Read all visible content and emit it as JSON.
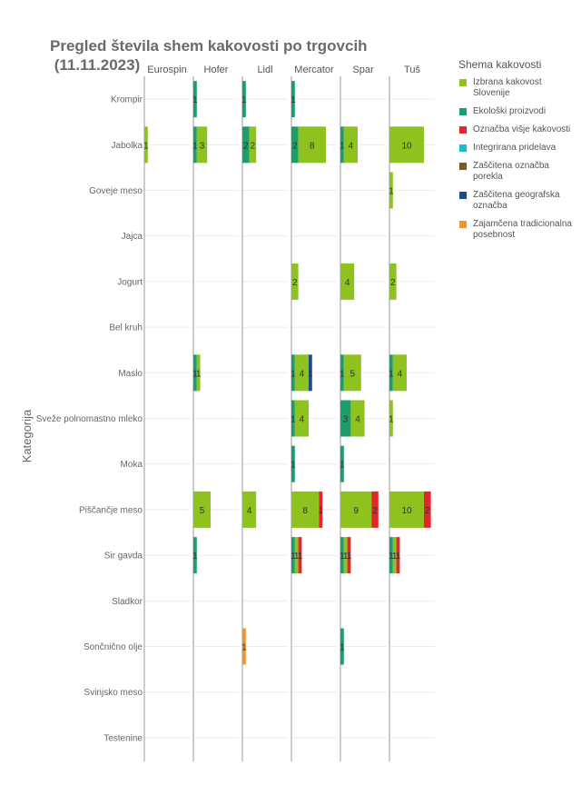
{
  "chart_data": {
    "type": "bar",
    "orientation": "horizontal",
    "stacked": true,
    "faceted_by": "Trgovec",
    "title": "Pregled števila shem kakovosti po trgovcih\n (11.11.2023)",
    "ylabel": "Kategorija",
    "legend_title": "Shema kakovosti",
    "legend_position": "right",
    "facets": [
      "Eurospin",
      "Hofer",
      "Lidl",
      "Mercator",
      "Spar",
      "Tuš"
    ],
    "categories": [
      "Krompir",
      "Jabolka",
      "Goveje meso",
      "Jajca",
      "Jogurt",
      "Bel kruh",
      "Maslo",
      "Sveže polnomastno mleko",
      "Moka",
      "Piščančje meso",
      "Sir gavda",
      "Sladkor",
      "Sončnično olje",
      "Svinjsko meso",
      "Testenine"
    ],
    "xlim": [
      0,
      10
    ],
    "series": [
      {
        "name": "Izbrana kakovost Slovenije",
        "color": "#8dc21f",
        "values": {
          "Eurospin": {
            "Jabolka": 1
          },
          "Hofer": {
            "Jabolka": 3,
            "Maslo": 1,
            "Piščančje meso": 5
          },
          "Lidl": {
            "Jabolka": 2,
            "Piščančje meso": 4
          },
          "Mercator": {
            "Jabolka": 8,
            "Jogurt": 2,
            "Maslo": 4,
            "Sveže polnomastno mleko": 4,
            "Piščančje meso": 8,
            "Sir gavda": 1
          },
          "Spar": {
            "Jabolka": 4,
            "Jogurt": 4,
            "Maslo": 5,
            "Sveže polnomastno mleko": 4,
            "Piščančje meso": 9,
            "Sir gavda": 1
          },
          "Tuš": {
            "Jabolka": 10,
            "Goveje meso": 1,
            "Jogurt": 2,
            "Maslo": 4,
            "Sveže polnomastno mleko": 1,
            "Piščančje meso": 10,
            "Sir gavda": 1
          }
        }
      },
      {
        "name": "Ekološki proizvodi",
        "color": "#1a9e6a",
        "values": {
          "Hofer": {
            "Krompir": 1,
            "Jabolka": 1,
            "Maslo": 1,
            "Sir gavda": 1
          },
          "Lidl": {
            "Krompir": 1,
            "Jabolka": 2
          },
          "Mercator": {
            "Krompir": 1,
            "Jabolka": 2,
            "Maslo": 1,
            "Sveže polnomastno mleko": 1,
            "Moka": 1,
            "Sir gavda": 1
          },
          "Spar": {
            "Jabolka": 1,
            "Maslo": 1,
            "Sveže polnomastno mleko": 3,
            "Moka": 1,
            "Sir gavda": 1,
            "Sončnično olje": 1
          },
          "Tuš": {
            "Maslo": 1,
            "Sir gavda": 1
          }
        }
      },
      {
        "name": "Označba višje kakovosti",
        "color": "#e3262d",
        "values": {
          "Mercator": {
            "Piščančje meso": 1,
            "Sir gavda": 1
          },
          "Spar": {
            "Piščančje meso": 2,
            "Sir gavda": 1
          },
          "Tuš": {
            "Piščančje meso": 2,
            "Sir gavda": 1
          }
        }
      },
      {
        "name": "Integrirana pridelava",
        "color": "#17becf",
        "values": {}
      },
      {
        "name": "Zaščitena označba porekla",
        "color": "#7b5a2a",
        "values": {}
      },
      {
        "name": "Zaščitena geografska označba",
        "color": "#1b4f8a",
        "values": {
          "Mercator": {
            "Maslo": 1
          }
        }
      },
      {
        "name": "Zajamčena tradicionalna posebnost",
        "color": "#f0962d",
        "values": {
          "Lidl": {
            "Sončnično olje": 1
          }
        }
      }
    ],
    "segments": {
      "Eurospin": {
        "Jabolka": [
          [
            "Izbrana kakovost Slovenije",
            1
          ]
        ]
      },
      "Hofer": {
        "Krompir": [
          [
            "Ekološki proizvodi",
            1
          ]
        ],
        "Jabolka": [
          [
            "Ekološki proizvodi",
            1
          ],
          [
            "Izbrana kakovost Slovenije",
            3
          ]
        ],
        "Maslo": [
          [
            "Ekološki proizvodi",
            1
          ],
          [
            "Izbrana kakovost Slovenije",
            1
          ]
        ],
        "Piščančje meso": [
          [
            "Izbrana kakovost Slovenije",
            5
          ]
        ],
        "Sir gavda": [
          [
            "Ekološki proizvodi",
            1
          ]
        ]
      },
      "Lidl": {
        "Krompir": [
          [
            "Ekološki proizvodi",
            1
          ]
        ],
        "Jabolka": [
          [
            "Ekološki proizvodi",
            2
          ],
          [
            "Izbrana kakovost Slovenije",
            2
          ]
        ],
        "Piščančje meso": [
          [
            "Izbrana kakovost Slovenije",
            4
          ]
        ],
        "Sončnično olje": [
          [
            "Zajamčena tradicionalna posebnost",
            1
          ]
        ]
      },
      "Mercator": {
        "Krompir": [
          [
            "Ekološki proizvodi",
            1
          ]
        ],
        "Jabolka": [
          [
            "Ekološki proizvodi",
            2
          ],
          [
            "Izbrana kakovost Slovenije",
            8
          ]
        ],
        "Jogurt": [
          [
            "Izbrana kakovost Slovenije",
            2
          ]
        ],
        "Maslo": [
          [
            "Ekološki proizvodi",
            1
          ],
          [
            "Izbrana kakovost Slovenije",
            4
          ],
          [
            "Zaščitena geografska označba",
            1
          ]
        ],
        "Sveže polnomastno mleko": [
          [
            "Ekološki proizvodi",
            1
          ],
          [
            "Izbrana kakovost Slovenije",
            4
          ]
        ],
        "Moka": [
          [
            "Ekološki proizvodi",
            1
          ]
        ],
        "Piščančje meso": [
          [
            "Izbrana kakovost Slovenije",
            8
          ],
          [
            "Označba višje kakovosti",
            1
          ]
        ],
        "Sir gavda": [
          [
            "Ekološki proizvodi",
            1
          ],
          [
            "Izbrana kakovost Slovenije",
            1
          ],
          [
            "Označba višje kakovosti",
            1
          ]
        ]
      },
      "Spar": {
        "Jabolka": [
          [
            "Ekološki proizvodi",
            1
          ],
          [
            "Izbrana kakovost Slovenije",
            4
          ]
        ],
        "Jogurt": [
          [
            "Izbrana kakovost Slovenije",
            4
          ]
        ],
        "Maslo": [
          [
            "Ekološki proizvodi",
            1
          ],
          [
            "Izbrana kakovost Slovenije",
            5
          ]
        ],
        "Sveže polnomastno mleko": [
          [
            "Ekološki proizvodi",
            3
          ],
          [
            "Izbrana kakovost Slovenije",
            4
          ]
        ],
        "Moka": [
          [
            "Ekološki proizvodi",
            1
          ]
        ],
        "Piščančje meso": [
          [
            "Izbrana kakovost Slovenije",
            9
          ],
          [
            "Označba višje kakovosti",
            2
          ]
        ],
        "Sir gavda": [
          [
            "Ekološki proizvodi",
            1
          ],
          [
            "Izbrana kakovost Slovenije",
            1
          ],
          [
            "Označba višje kakovosti",
            1
          ]
        ],
        "Sončnično olje": [
          [
            "Ekološki proizvodi",
            1
          ]
        ]
      },
      "Tuš": {
        "Jabolka": [
          [
            "Izbrana kakovost Slovenije",
            10
          ]
        ],
        "Goveje meso": [
          [
            "Izbrana kakovost Slovenije",
            1
          ]
        ],
        "Jogurt": [
          [
            "Izbrana kakovost Slovenije",
            2
          ]
        ],
        "Maslo": [
          [
            "Ekološki proizvodi",
            1
          ],
          [
            "Izbrana kakovost Slovenije",
            4
          ]
        ],
        "Sveže polnomastno mleko": [
          [
            "Izbrana kakovost Slovenije",
            1
          ]
        ],
        "Piščančje meso": [
          [
            "Izbrana kakovost Slovenije",
            10
          ],
          [
            "Označba višje kakovosti",
            2
          ]
        ],
        "Sir gavda": [
          [
            "Ekološki proizvodi",
            1
          ],
          [
            "Izbrana kakovost Slovenije",
            1
          ],
          [
            "Označba višje kakovosti",
            1
          ]
        ]
      }
    }
  }
}
